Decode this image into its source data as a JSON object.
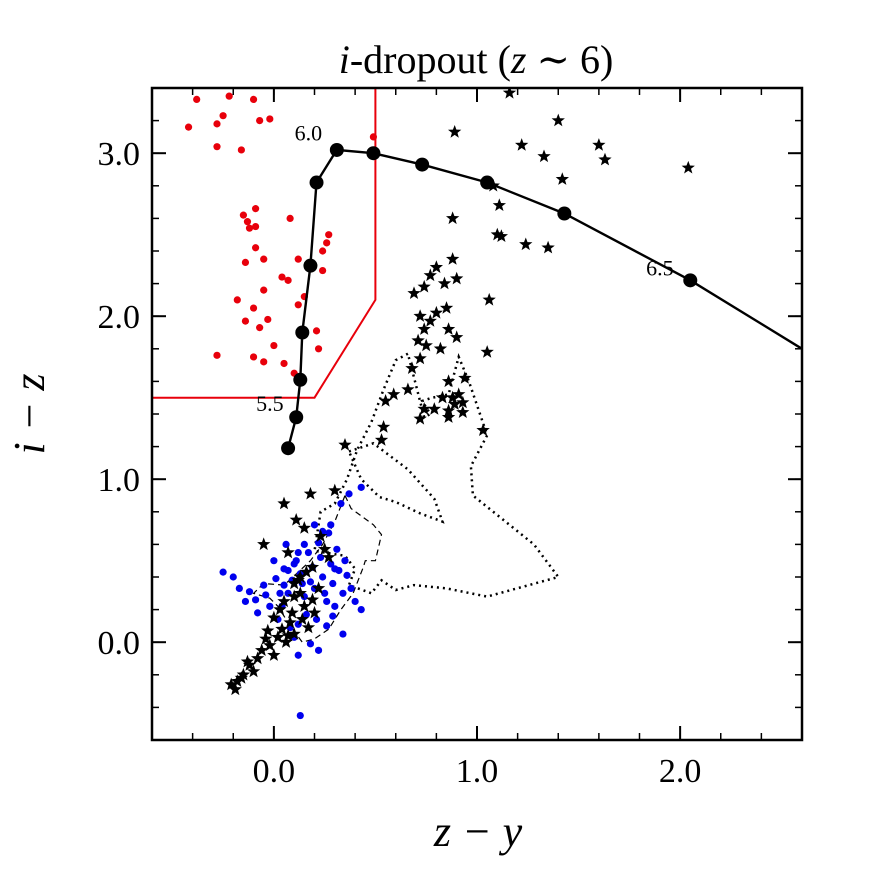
{
  "chart_data": {
    "type": "scatter",
    "title": {
      "italic": "i",
      "plain": "-dropout (",
      "italic2": "z",
      "tail": " ∼ 6)"
    },
    "xlabel": "z − y",
    "ylabel": "i − z",
    "xlim": [
      -0.6,
      2.6
    ],
    "ylim": [
      -0.6,
      3.4
    ],
    "xticks": [
      {
        "value": 0.0,
        "label": "0.0"
      },
      {
        "value": 1.0,
        "label": "1.0"
      },
      {
        "value": 2.0,
        "label": "2.0"
      }
    ],
    "yticks": [
      {
        "value": 0.0,
        "label": "0.0"
      },
      {
        "value": 1.0,
        "label": "1.0"
      },
      {
        "value": 2.0,
        "label": "2.0"
      },
      {
        "value": 3.0,
        "label": "3.0"
      }
    ],
    "x_minor_step": 0.2,
    "y_minor_step": 0.2,
    "grid": false,
    "colors": {
      "red": "#e8000b",
      "blue": "#0000ee",
      "black": "#000000"
    },
    "selection_boundary": [
      [
        -0.6,
        1.5
      ],
      [
        0.2,
        1.5
      ],
      [
        0.5,
        2.1
      ],
      [
        0.5,
        3.4
      ]
    ],
    "track": {
      "points": [
        [
          0.07,
          1.19
        ],
        [
          0.11,
          1.38
        ],
        [
          0.13,
          1.61
        ],
        [
          0.14,
          1.9
        ],
        [
          0.18,
          2.31
        ],
        [
          0.21,
          2.82
        ],
        [
          0.31,
          3.02
        ],
        [
          0.49,
          3.0
        ],
        [
          0.73,
          2.93
        ],
        [
          1.05,
          2.82
        ],
        [
          1.43,
          2.63
        ],
        [
          2.05,
          2.22
        ],
        [
          2.6,
          1.8
        ]
      ],
      "markers": [
        [
          0.07,
          1.19
        ],
        [
          0.11,
          1.38
        ],
        [
          0.13,
          1.61
        ],
        [
          0.14,
          1.9
        ],
        [
          0.18,
          2.31
        ],
        [
          0.21,
          2.82
        ],
        [
          0.31,
          3.02
        ],
        [
          0.49,
          3.0
        ],
        [
          0.73,
          2.93
        ],
        [
          1.05,
          2.82
        ],
        [
          1.43,
          2.63
        ],
        [
          2.05,
          2.22
        ]
      ],
      "labels": [
        {
          "text": "5.5",
          "x": -0.02,
          "y": 1.45
        },
        {
          "text": "6.0",
          "x": 0.17,
          "y": 3.11
        },
        {
          "text": "6.5",
          "x": 1.9,
          "y": 2.28
        }
      ]
    },
    "red_points": [
      [
        -0.38,
        3.33
      ],
      [
        -0.22,
        3.35
      ],
      [
        -0.25,
        3.23
      ],
      [
        -0.42,
        3.16
      ],
      [
        -0.28,
        3.18
      ],
      [
        -0.1,
        3.33
      ],
      [
        -0.07,
        3.2
      ],
      [
        -0.02,
        3.21
      ],
      [
        -0.28,
        3.04
      ],
      [
        -0.16,
        3.02
      ],
      [
        0.49,
        3.1
      ],
      [
        -0.15,
        2.62
      ],
      [
        -0.09,
        2.66
      ],
      [
        -0.13,
        2.58
      ],
      [
        -0.12,
        2.54
      ],
      [
        -0.09,
        2.55
      ],
      [
        -0.05,
        2.35
      ],
      [
        0.08,
        2.6
      ],
      [
        0.26,
        2.45
      ],
      [
        0.27,
        2.5
      ],
      [
        0.12,
        2.35
      ],
      [
        0.24,
        2.4
      ],
      [
        -0.09,
        2.42
      ],
      [
        -0.14,
        2.33
      ],
      [
        -0.18,
        2.1
      ],
      [
        -0.1,
        2.05
      ],
      [
        -0.05,
        2.16
      ],
      [
        0.04,
        2.24
      ],
      [
        0.07,
        2.22
      ],
      [
        0.24,
        2.28
      ],
      [
        0.15,
        2.12
      ],
      [
        0.12,
        2.07
      ],
      [
        -0.14,
        1.97
      ],
      [
        -0.03,
        1.98
      ],
      [
        -0.07,
        1.93
      ],
      [
        0.0,
        1.82
      ],
      [
        0.21,
        1.91
      ],
      [
        0.22,
        1.8
      ],
      [
        -0.28,
        1.76
      ],
      [
        -0.1,
        1.75
      ],
      [
        -0.05,
        1.72
      ],
      [
        0.05,
        1.71
      ],
      [
        0.1,
        1.65
      ]
    ],
    "blue_points": [
      [
        -0.25,
        0.43
      ],
      [
        -0.2,
        0.4
      ],
      [
        -0.17,
        0.33
      ],
      [
        -0.14,
        0.25
      ],
      [
        -0.12,
        0.31
      ],
      [
        -0.09,
        0.26
      ],
      [
        -0.08,
        0.18
      ],
      [
        -0.04,
        0.29
      ],
      [
        -0.02,
        0.22
      ],
      [
        0.01,
        0.39
      ],
      [
        0.03,
        0.3
      ],
      [
        0.05,
        0.35
      ],
      [
        0.07,
        0.44
      ],
      [
        0.09,
        0.38
      ],
      [
        0.11,
        0.5
      ],
      [
        0.13,
        0.42
      ],
      [
        0.14,
        0.36
      ],
      [
        0.15,
        0.28
      ],
      [
        0.17,
        0.55
      ],
      [
        0.19,
        0.46
      ],
      [
        0.2,
        0.33
      ],
      [
        0.22,
        0.61
      ],
      [
        0.23,
        0.52
      ],
      [
        0.24,
        0.4
      ],
      [
        0.25,
        0.3
      ],
      [
        0.27,
        0.67
      ],
      [
        0.28,
        0.48
      ],
      [
        0.29,
        0.36
      ],
      [
        0.3,
        0.22
      ],
      [
        0.31,
        0.57
      ],
      [
        0.32,
        0.44
      ],
      [
        0.33,
        0.85
      ],
      [
        0.34,
        0.3
      ],
      [
        0.35,
        0.5
      ],
      [
        0.36,
        0.41
      ],
      [
        0.38,
        0.33
      ],
      [
        0.4,
        0.25
      ],
      [
        0.43,
        0.2
      ],
      [
        0.43,
        0.95
      ],
      [
        0.37,
        0.91
      ],
      [
        0.28,
        0.72
      ],
      [
        0.24,
        0.68
      ],
      [
        0.2,
        0.72
      ],
      [
        0.15,
        0.6
      ],
      [
        0.12,
        0.55
      ],
      [
        0.1,
        0.48
      ],
      [
        0.07,
        0.3
      ],
      [
        0.04,
        0.22
      ],
      [
        0.02,
        0.14
      ],
      [
        0.08,
        0.09
      ],
      [
        0.12,
        0.11
      ],
      [
        0.16,
        0.17
      ],
      [
        0.21,
        0.14
      ],
      [
        0.26,
        0.1
      ],
      [
        0.29,
        0.16
      ],
      [
        0.34,
        0.05
      ],
      [
        0.1,
        0.03
      ],
      [
        0.18,
        -0.01
      ],
      [
        0.22,
        -0.05
      ],
      [
        0.12,
        -0.08
      ],
      [
        0.13,
        -0.45
      ],
      [
        -0.05,
        0.35
      ],
      [
        0.0,
        0.5
      ],
      [
        0.06,
        0.6
      ],
      [
        0.18,
        0.37
      ],
      [
        0.26,
        0.25
      ],
      [
        0.3,
        0.45
      ],
      [
        0.05,
        0.45
      ]
    ],
    "star_points": [
      [
        1.16,
        3.37
      ],
      [
        1.4,
        3.2
      ],
      [
        0.89,
        3.13
      ],
      [
        1.33,
        2.98
      ],
      [
        1.22,
        3.05
      ],
      [
        1.42,
        2.84
      ],
      [
        1.6,
        3.05
      ],
      [
        1.63,
        2.96
      ],
      [
        2.04,
        2.91
      ],
      [
        1.08,
        2.8
      ],
      [
        1.11,
        2.68
      ],
      [
        0.88,
        2.6
      ],
      [
        1.24,
        2.44
      ],
      [
        1.1,
        2.5
      ],
      [
        1.35,
        2.42
      ],
      [
        1.12,
        2.49
      ],
      [
        0.88,
        2.35
      ],
      [
        0.8,
        2.3
      ],
      [
        0.77,
        2.25
      ],
      [
        0.84,
        2.2
      ],
      [
        0.9,
        2.23
      ],
      [
        0.74,
        2.18
      ],
      [
        0.69,
        2.14
      ],
      [
        1.06,
        2.1
      ],
      [
        0.85,
        2.05
      ],
      [
        0.8,
        2.02
      ],
      [
        0.77,
        1.97
      ],
      [
        0.72,
        2.0
      ],
      [
        0.74,
        1.92
      ],
      [
        0.86,
        1.92
      ],
      [
        0.9,
        1.87
      ],
      [
        0.71,
        1.85
      ],
      [
        0.75,
        1.82
      ],
      [
        0.82,
        1.8
      ],
      [
        1.05,
        1.78
      ],
      [
        0.72,
        1.74
      ],
      [
        0.68,
        1.68
      ],
      [
        0.86,
        1.6
      ],
      [
        0.94,
        1.62
      ],
      [
        0.91,
        1.52
      ],
      [
        0.83,
        1.5
      ],
      [
        0.88,
        1.5
      ],
      [
        0.66,
        1.55
      ],
      [
        0.59,
        1.52
      ],
      [
        0.55,
        1.48
      ],
      [
        0.89,
        1.46
      ],
      [
        0.93,
        1.47
      ],
      [
        0.86,
        1.42
      ],
      [
        0.79,
        1.43
      ],
      [
        0.86,
        1.38
      ],
      [
        0.93,
        1.41
      ],
      [
        0.72,
        1.37
      ],
      [
        0.74,
        1.43
      ],
      [
        1.03,
        1.3
      ],
      [
        0.54,
        1.32
      ],
      [
        0.53,
        1.24
      ],
      [
        0.35,
        1.21
      ],
      [
        0.3,
        0.93
      ],
      [
        0.18,
        0.91
      ],
      [
        0.05,
        0.85
      ],
      [
        0.11,
        0.75
      ],
      [
        0.15,
        0.7
      ],
      [
        0.23,
        0.65
      ],
      [
        -0.05,
        0.6
      ],
      [
        0.07,
        0.55
      ],
      [
        0.19,
        0.46
      ],
      [
        0.13,
        0.4
      ],
      [
        0.22,
        0.33
      ],
      [
        0.1,
        0.28
      ],
      [
        0.05,
        0.25
      ],
      [
        0.15,
        0.22
      ],
      [
        0.2,
        0.18
      ],
      [
        0.0,
        0.15
      ],
      [
        0.08,
        0.12
      ],
      [
        0.17,
        0.09
      ],
      [
        0.1,
        0.05
      ],
      [
        0.02,
        0.03
      ],
      [
        0.06,
        0.0
      ],
      [
        -0.02,
        -0.02
      ],
      [
        -0.06,
        -0.05
      ],
      [
        0.0,
        -0.08
      ],
      [
        -0.08,
        -0.1
      ],
      [
        -0.12,
        -0.14
      ],
      [
        -0.1,
        -0.18
      ],
      [
        -0.15,
        -0.2
      ],
      [
        -0.18,
        -0.24
      ],
      [
        -0.21,
        -0.26
      ],
      [
        -0.19,
        -0.29
      ],
      [
        -0.16,
        -0.22
      ],
      [
        -0.13,
        -0.12
      ],
      [
        0.04,
        0.08
      ],
      [
        0.09,
        0.18
      ],
      [
        0.13,
        0.3
      ],
      [
        0.25,
        0.57
      ],
      [
        0.27,
        0.52
      ],
      [
        0.12,
        0.38
      ],
      [
        0.03,
        0.2
      ],
      [
        -0.03,
        0.07
      ],
      [
        0.14,
        0.14
      ],
      [
        0.19,
        0.26
      ],
      [
        0.1,
        0.36
      ],
      [
        0.07,
        0.04
      ],
      [
        -0.04,
        0.02
      ],
      [
        0.16,
        0.43
      ]
    ],
    "dotted_contour": [
      [
        0.66,
        1.77
      ],
      [
        0.6,
        1.73
      ],
      [
        0.54,
        1.55
      ],
      [
        0.48,
        1.35
      ],
      [
        0.41,
        1.18
      ],
      [
        0.36,
        1.0
      ],
      [
        0.3,
        0.85
      ],
      [
        0.23,
        0.8
      ],
      [
        0.2,
        0.56
      ],
      [
        0.35,
        0.53
      ],
      [
        0.4,
        0.45
      ],
      [
        0.37,
        0.35
      ],
      [
        0.48,
        0.3
      ],
      [
        0.53,
        0.38
      ],
      [
        0.6,
        0.32
      ],
      [
        0.69,
        0.35
      ],
      [
        0.85,
        0.33
      ],
      [
        1.05,
        0.28
      ],
      [
        1.4,
        0.4
      ],
      [
        1.28,
        0.6
      ],
      [
        0.98,
        0.9
      ],
      [
        0.97,
        1.08
      ],
      [
        1.05,
        1.27
      ],
      [
        0.96,
        1.6
      ],
      [
        0.91,
        1.75
      ],
      [
        0.86,
        1.52
      ],
      [
        0.78,
        1.5
      ],
      [
        0.73,
        1.48
      ],
      [
        0.77,
        1.4
      ],
      [
        0.74,
        1.38
      ],
      [
        0.66,
        1.77
      ]
    ],
    "dotted_inner": [
      [
        0.37,
        1.17
      ],
      [
        0.49,
        1.22
      ],
      [
        0.66,
        1.06
      ],
      [
        0.79,
        0.88
      ],
      [
        0.83,
        0.74
      ],
      [
        0.72,
        0.79
      ],
      [
        0.6,
        0.86
      ],
      [
        0.52,
        0.89
      ],
      [
        0.43,
        1.0
      ],
      [
        0.37,
        1.17
      ]
    ],
    "dashed_contour": [
      [
        0.35,
        0.9
      ],
      [
        0.38,
        0.82
      ],
      [
        0.49,
        0.72
      ],
      [
        0.53,
        0.66
      ],
      [
        0.5,
        0.5
      ],
      [
        0.45,
        0.5
      ],
      [
        0.44,
        0.46
      ],
      [
        0.39,
        0.3
      ],
      [
        0.33,
        0.2
      ],
      [
        0.27,
        0.08
      ],
      [
        0.2,
        0.02
      ],
      [
        0.14,
        0.0
      ],
      [
        0.08,
        0.1
      ],
      [
        0.02,
        0.22
      ],
      [
        -0.02,
        0.27
      ],
      [
        -0.1,
        0.3
      ],
      [
        -0.05,
        0.36
      ],
      [
        0.05,
        0.35
      ],
      [
        0.12,
        0.43
      ],
      [
        0.18,
        0.5
      ],
      [
        0.24,
        0.6
      ],
      [
        0.3,
        0.74
      ],
      [
        0.35,
        0.9
      ]
    ]
  }
}
